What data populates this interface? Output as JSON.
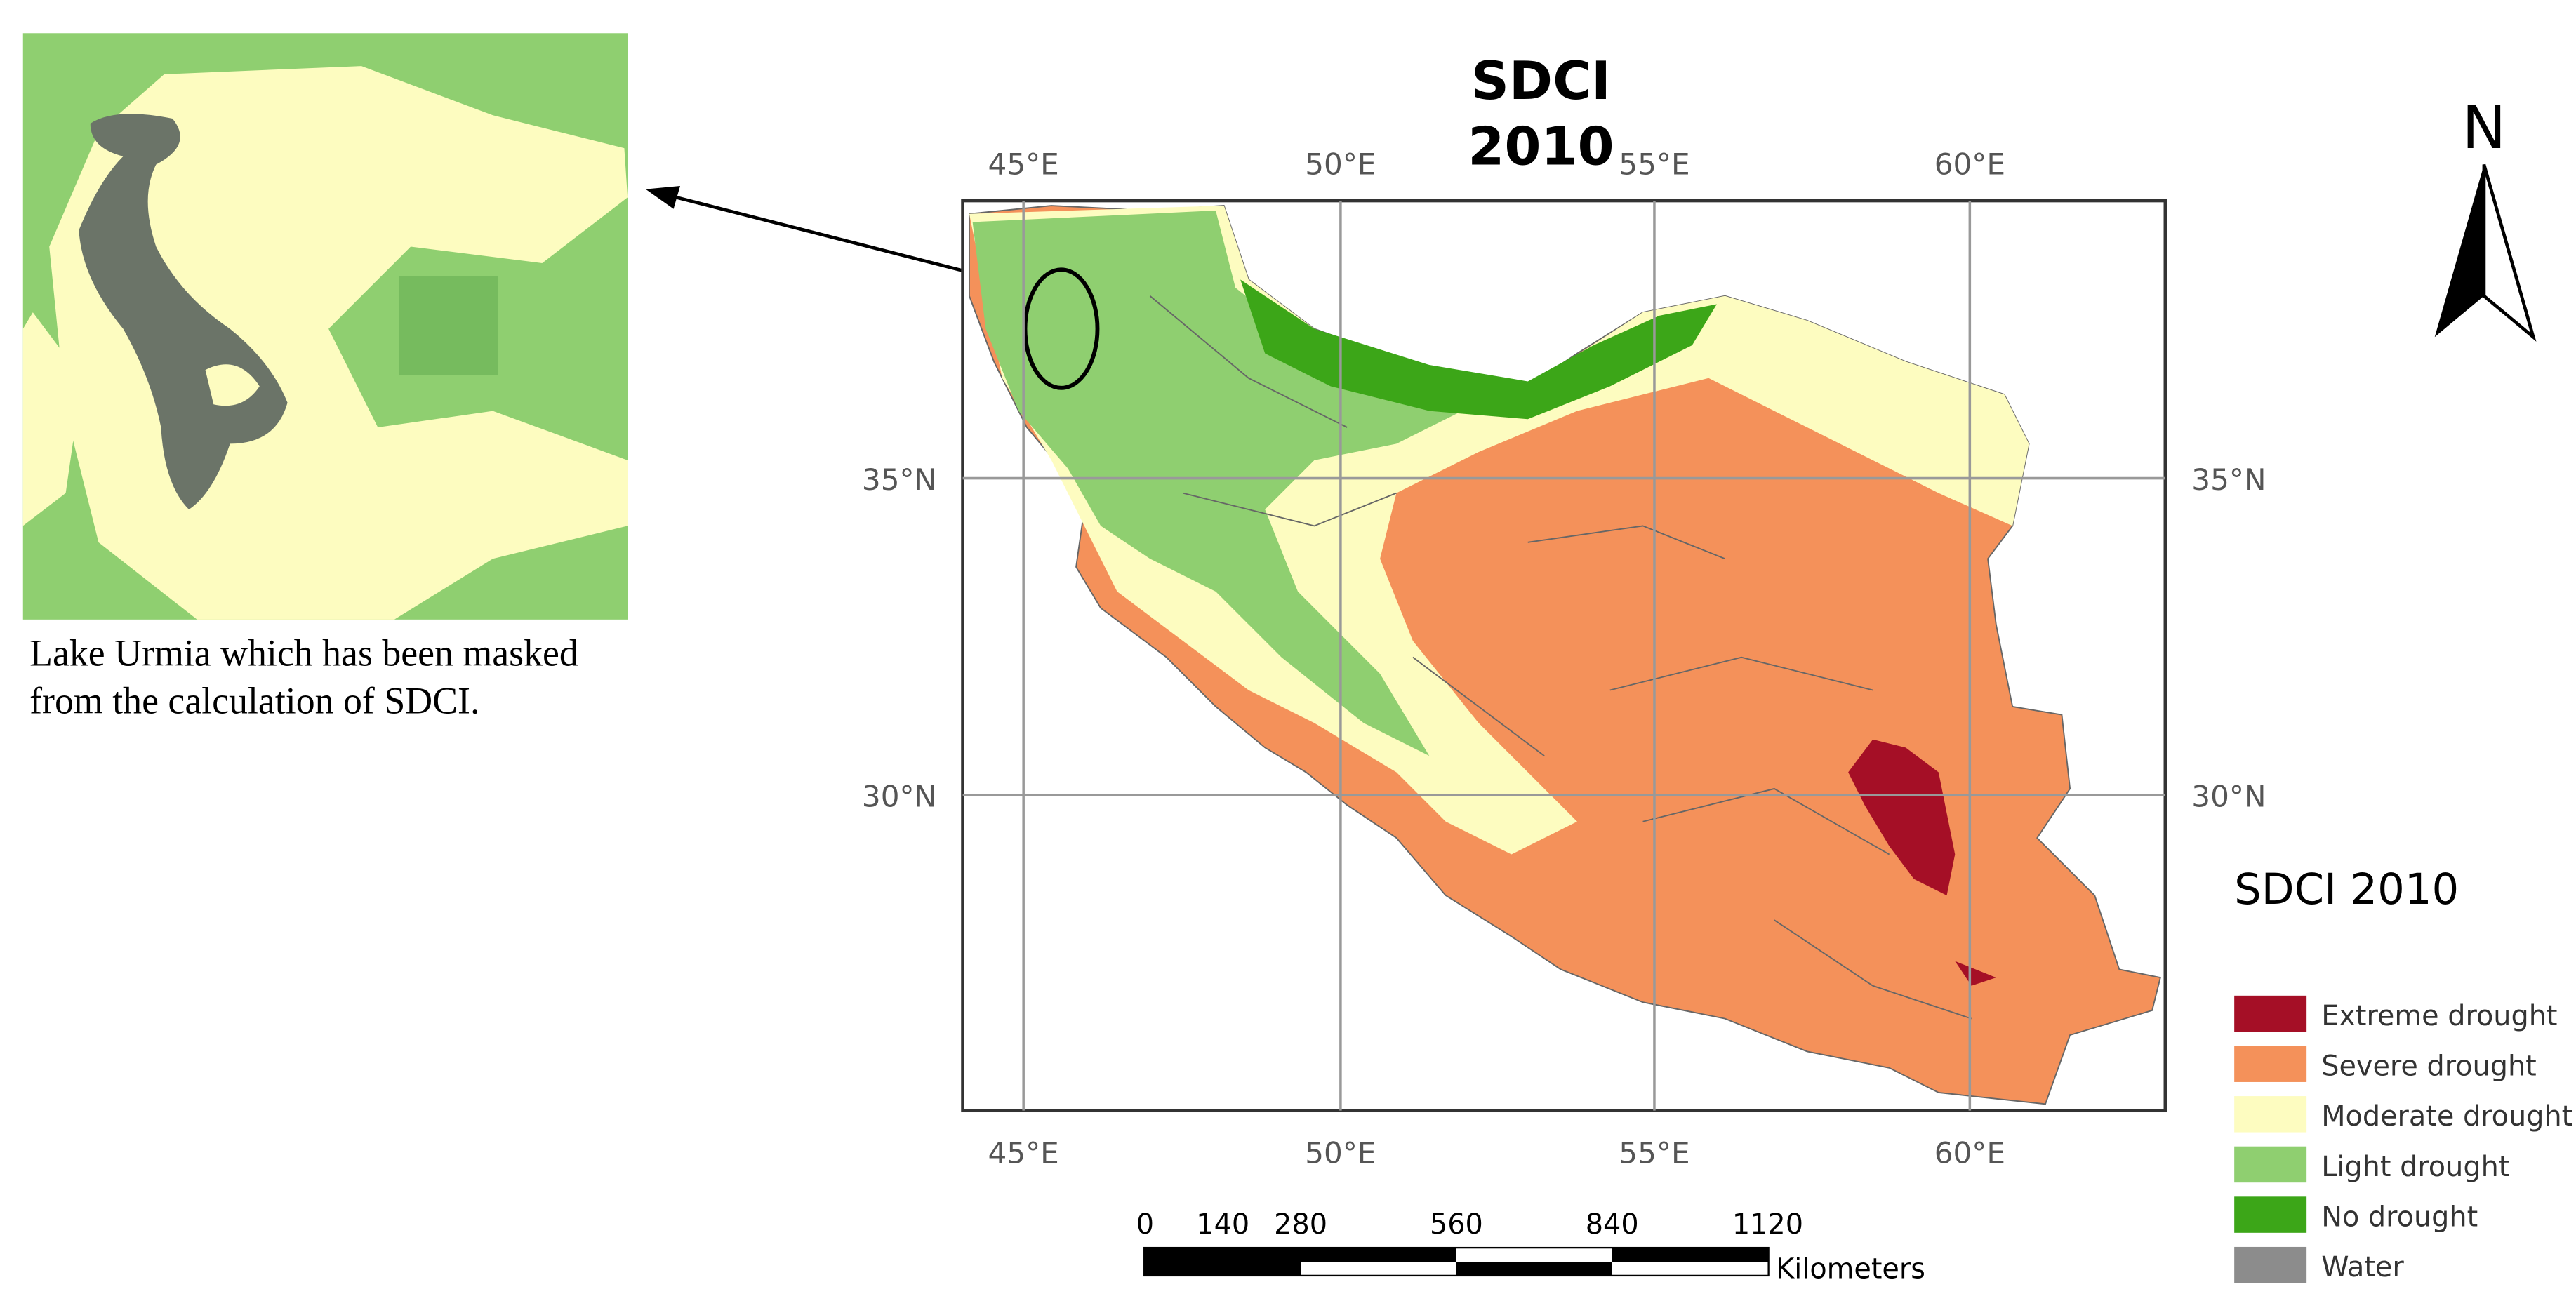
{
  "title_lines": [
    "SDCI",
    "2010"
  ],
  "inset": {
    "caption_lines": [
      "Lake Urmia which has been masked",
      "from the calculation of SDCI."
    ]
  },
  "map": {
    "lon_labels": [
      "45°E",
      "50°E",
      "55°E",
      "60°E"
    ],
    "lat_labels": [
      "35°N",
      "30°N"
    ]
  },
  "scale_bar": {
    "ticks": [
      0,
      140,
      280,
      560,
      840,
      1120
    ],
    "unit": "Kilometers"
  },
  "north_arrow": {
    "label": "N"
  },
  "legend": {
    "title": "SDCI 2010",
    "items": [
      {
        "label": "Extreme drought",
        "color": "#a50f26"
      },
      {
        "label": "Severe drought",
        "color": "#f4915a"
      },
      {
        "label": "Moderate drought",
        "color": "#fdfcc0"
      },
      {
        "label": "Light drought",
        "color": "#8fcf70"
      },
      {
        "label": "No drought",
        "color": "#3ca618"
      },
      {
        "label": "Water",
        "color": "#8c8c8c"
      }
    ]
  }
}
